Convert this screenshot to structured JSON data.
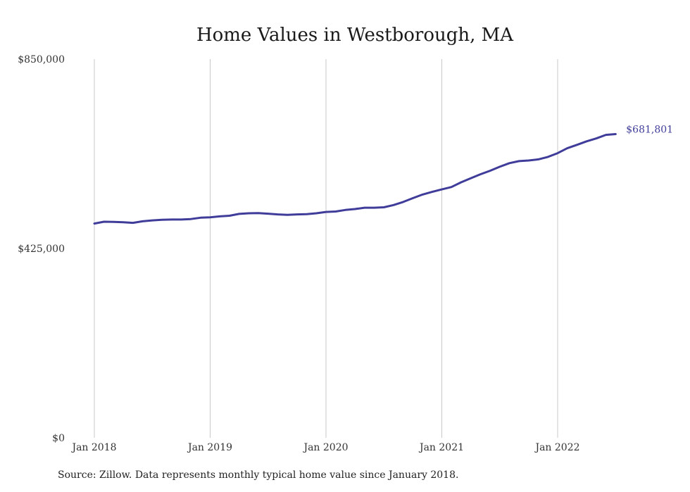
{
  "chart_data": {
    "type": "line",
    "title": "Home Values in Westborough, MA",
    "xlabel": "",
    "ylabel": "",
    "ylim": [
      0,
      850000
    ],
    "y_ticks": [
      "$0",
      "$425,000",
      "$850,000"
    ],
    "y_tick_values": [
      0,
      425000,
      850000
    ],
    "x_ticks": [
      "Jan 2018",
      "Jan 2019",
      "Jan 2020",
      "Jan 2021",
      "Jan 2022"
    ],
    "x_tick_dates": [
      "2018-01",
      "2019-01",
      "2020-01",
      "2021-01",
      "2022-01"
    ],
    "grid": "vertical",
    "line_color": "#3f3d99",
    "series": [
      {
        "x": [
          "2018-01",
          "2018-02",
          "2018-03",
          "2018-04",
          "2018-05",
          "2018-06",
          "2018-07",
          "2018-08",
          "2018-09",
          "2018-10",
          "2018-11",
          "2018-12",
          "2019-01",
          "2019-02",
          "2019-03",
          "2019-04",
          "2019-05",
          "2019-06",
          "2019-07",
          "2019-08",
          "2019-09",
          "2019-10",
          "2019-11",
          "2019-12",
          "2020-01",
          "2020-02",
          "2020-03",
          "2020-04",
          "2020-05",
          "2020-06",
          "2020-07",
          "2020-08",
          "2020-09",
          "2020-10",
          "2020-11",
          "2020-12",
          "2021-01",
          "2021-02",
          "2021-03",
          "2021-04",
          "2021-05",
          "2021-06",
          "2021-07",
          "2021-08",
          "2021-09",
          "2021-10",
          "2021-11",
          "2021-12",
          "2022-01",
          "2022-02",
          "2022-03",
          "2022-04",
          "2022-05",
          "2022-06",
          "2022-07"
        ],
        "values": [
          481000,
          485000,
          484500,
          484000,
          482500,
          486000,
          488000,
          489500,
          490000,
          490000,
          491000,
          494000,
          495000,
          497000,
          498500,
          502500,
          504000,
          504500,
          503000,
          501500,
          500500,
          501500,
          502000,
          504000,
          507000,
          508000,
          511500,
          513500,
          516500,
          516500,
          517500,
          522500,
          529500,
          538000,
          546000,
          552000,
          557500,
          563000,
          573500,
          582500,
          591500,
          599500,
          608500,
          616500,
          621000,
          622500,
          625000,
          630500,
          639000,
          650000,
          657500,
          665500,
          672000,
          680000,
          681801
        ]
      }
    ],
    "end_label": "$681,801"
  },
  "source": "Source: Zillow. Data represents monthly typical home value since January 2018."
}
